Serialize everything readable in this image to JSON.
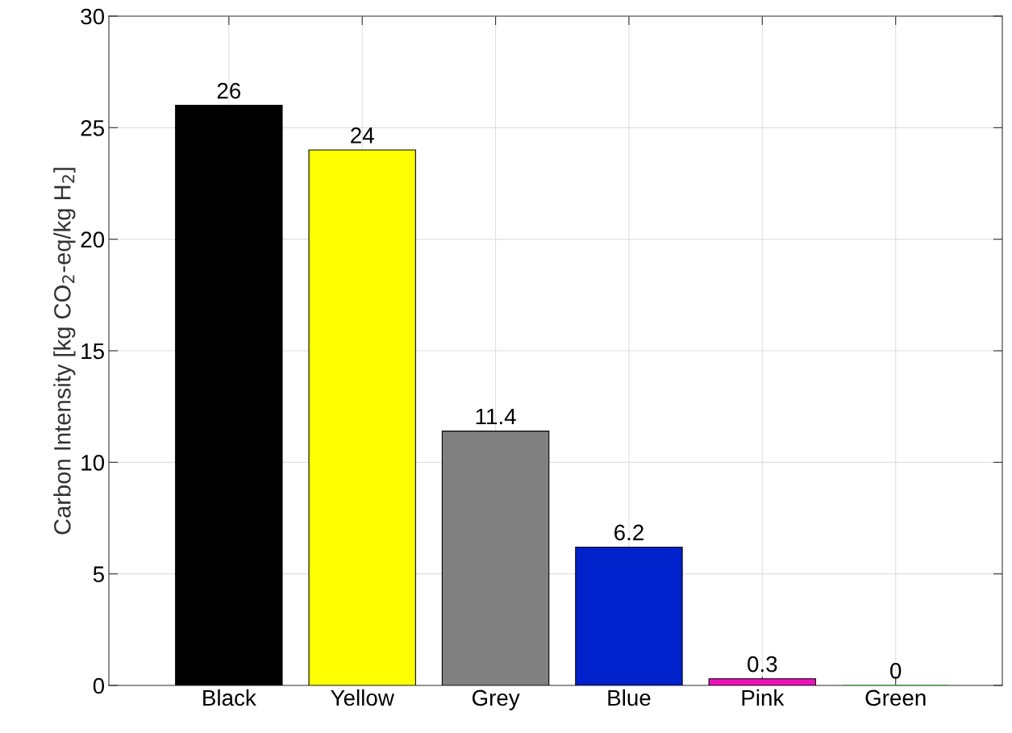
{
  "chart_data": {
    "type": "bar",
    "ylabel": "Carbon Intensity [kg CO$_{2}$-eq/kg H$_{2}$]",
    "categories": [
      "Black",
      "Yellow",
      "Grey",
      "Blue",
      "Pink",
      "Green"
    ],
    "values": [
      26,
      24,
      11.4,
      6.2,
      0.3,
      0
    ],
    "colors": [
      "#000000",
      "#ffff00",
      "#808080",
      "#0022cc",
      "#ee11bb",
      "#00aa00"
    ],
    "ylim": [
      0,
      30
    ],
    "yticks": [
      0,
      5,
      10,
      15,
      20,
      25,
      30
    ],
    "grid": true,
    "data_labels": true
  }
}
